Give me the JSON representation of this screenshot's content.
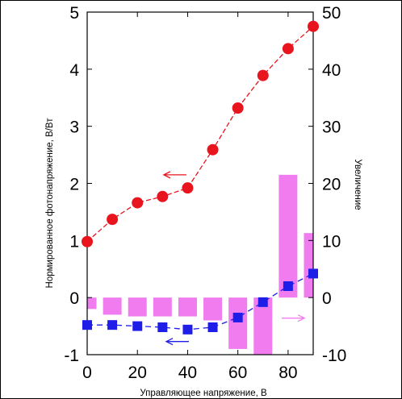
{
  "chart_data": {
    "type": "bar+line",
    "xlabel": "Управляющее напряжение, В",
    "ylabel_left": "Нормированное фотонапряжение, В/Вт",
    "ylabel_right": "Увеличение",
    "xlim": [
      0,
      90
    ],
    "ylim_left": [
      -1,
      5
    ],
    "ylim_right": [
      -10,
      50
    ],
    "x_ticks": [
      "0",
      "20",
      "40",
      "60",
      "80"
    ],
    "y_left_ticks": [
      "-1",
      "0",
      "1",
      "2",
      "3",
      "4",
      "5"
    ],
    "y_right_ticks": [
      "-10",
      "0",
      "10",
      "20",
      "30",
      "40",
      "50"
    ],
    "grid": false,
    "series": [
      {
        "kind": "line-circle",
        "axis": "left",
        "color": "#e8141e",
        "x": [
          0,
          10,
          20,
          30,
          40,
          50,
          60,
          70,
          80,
          90
        ],
        "values": [
          0.98,
          1.37,
          1.66,
          1.77,
          1.92,
          2.59,
          3.32,
          3.89,
          4.36,
          4.75
        ]
      },
      {
        "kind": "line-square",
        "axis": "left",
        "color": "#1e1ee8",
        "x": [
          0,
          10,
          20,
          30,
          40,
          50,
          60,
          70,
          80,
          90
        ],
        "values": [
          -0.48,
          -0.48,
          -0.5,
          -0.52,
          -0.56,
          -0.52,
          -0.35,
          -0.08,
          0.2,
          0.42
        ]
      },
      {
        "kind": "bar",
        "axis": "right",
        "color": "#f07cf0",
        "x": [
          0,
          10,
          20,
          30,
          40,
          50,
          60,
          70,
          80,
          90
        ],
        "values": [
          -2,
          -3,
          -3.3,
          -3.3,
          -3.3,
          -4,
          -9,
          -10,
          21.5,
          11.3
        ]
      }
    ],
    "annotations": [
      {
        "kind": "arrow",
        "direction": "left",
        "color": "#e8141e",
        "x": 35,
        "y_left": 2.15
      },
      {
        "kind": "arrow",
        "direction": "left",
        "color": "#1e1ee8",
        "x": 36,
        "y_left": -0.77
      },
      {
        "kind": "arrow",
        "direction": "right",
        "color": "#f07cf0",
        "x": 82,
        "y_left": -0.36
      }
    ]
  }
}
